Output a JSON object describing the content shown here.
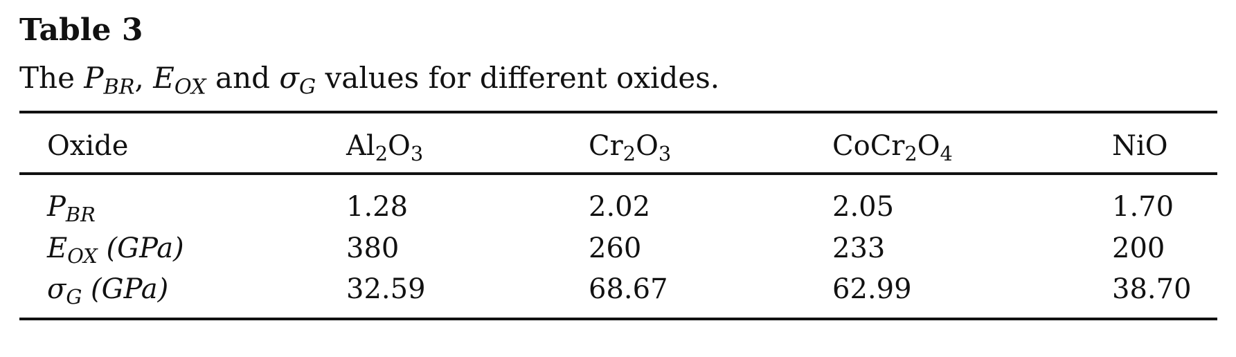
{
  "table": {
    "label": "Table 3",
    "caption": {
      "prefix": "The ",
      "p_sym": "P",
      "p_sub": "BR",
      "sep1": ", ",
      "e_sym": "E",
      "e_sub": "OX",
      "sep2": " and ",
      "s_sym": "σ",
      "s_sub": "G",
      "suffix": " values for different oxides."
    },
    "header": {
      "oxide": "Oxide",
      "al": {
        "a": "Al",
        "b": "2",
        "c": "O",
        "d": "3"
      },
      "cr": {
        "a": "Cr",
        "b": "2",
        "c": "O",
        "d": "3"
      },
      "cocr": {
        "a": "CoCr",
        "b": "2",
        "c": "O",
        "d": "4"
      },
      "ni": "NiO"
    },
    "rows": [
      {
        "label_sym": "P",
        "label_sub": "BR",
        "label_unit": "",
        "values": [
          "1.28",
          "2.02",
          "2.05",
          "1.70"
        ]
      },
      {
        "label_sym": "E",
        "label_sub": "OX",
        "label_unit": " (GPa)",
        "values": [
          "380",
          "260",
          "233",
          "200"
        ]
      },
      {
        "label_sym": "σ",
        "label_sub": "G",
        "label_unit": " (GPa)",
        "values": [
          "32.59",
          "68.67",
          "62.99",
          "38.70"
        ]
      }
    ]
  }
}
